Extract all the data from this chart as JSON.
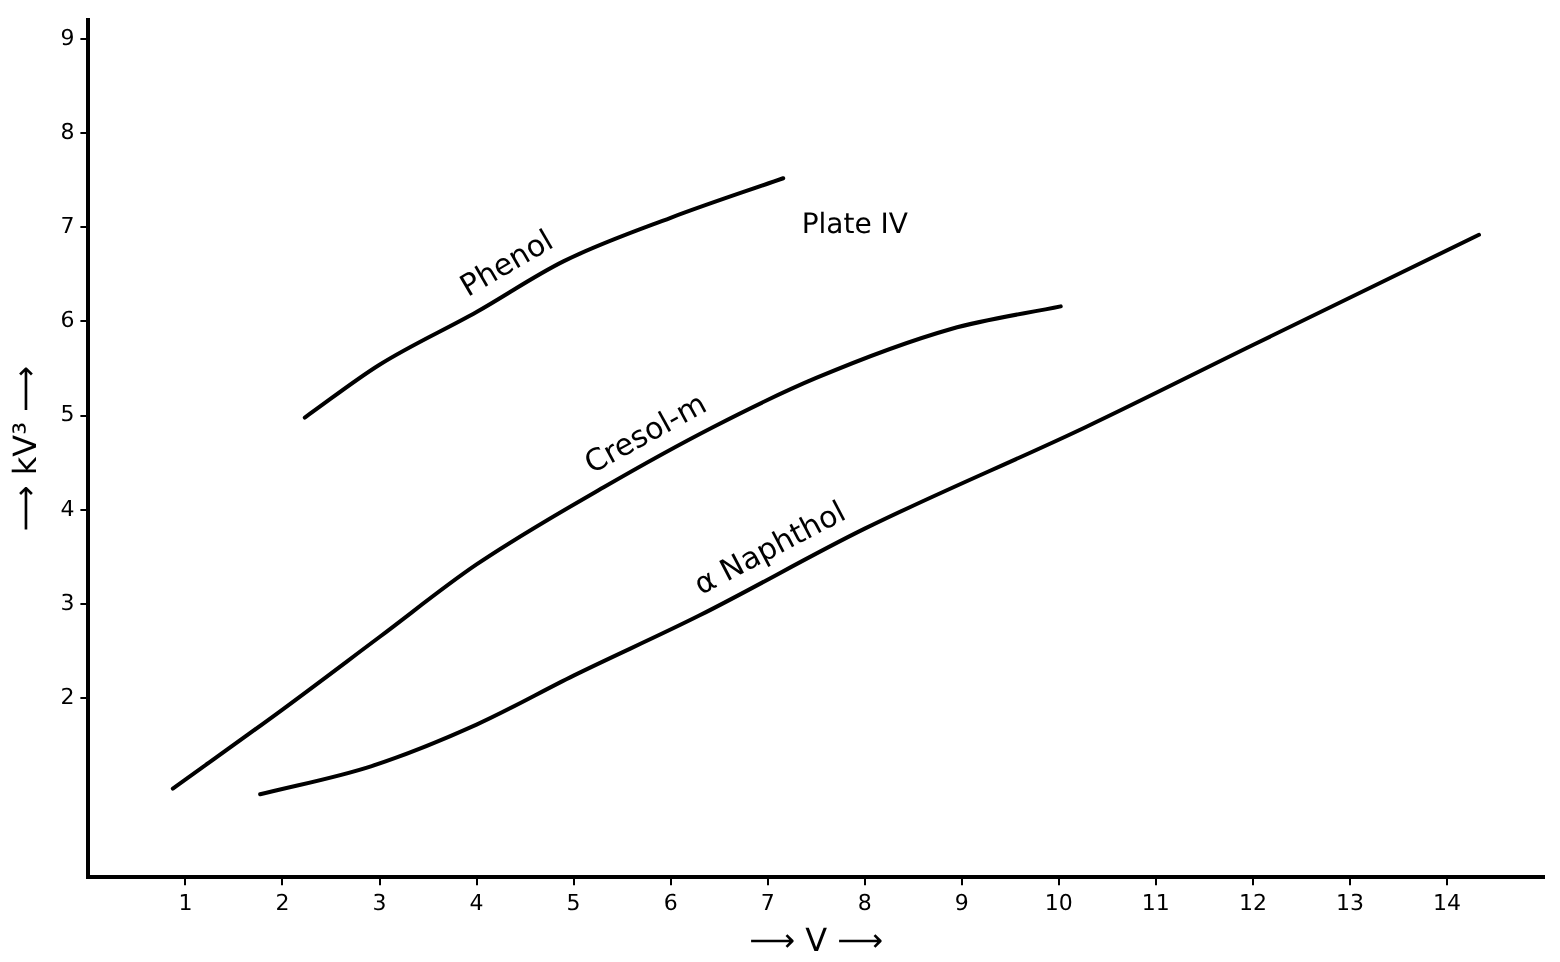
{
  "chart_data": {
    "type": "line",
    "xlabel": "⟶ V ⟶",
    "ylabel": "⟶ kV³ ⟶",
    "annotations": [
      "Plate IV"
    ],
    "xlim": [
      0,
      15
    ],
    "ylim": [
      0.1,
      9.2
    ],
    "xticks": [
      1,
      2,
      3,
      4,
      5,
      6,
      7,
      8,
      9,
      10,
      11,
      12,
      13,
      14
    ],
    "yticks": [
      2,
      3,
      4,
      5,
      6,
      7,
      8,
      9
    ],
    "grid": false,
    "legend": false,
    "marker": "none",
    "line_style": "solid",
    "series": [
      {
        "name": "Phenol",
        "color": "#000000",
        "x": [
          2.23,
          3,
          4,
          4.9,
          6,
          7.16
        ],
        "values": [
          4.98,
          5.54,
          6.1,
          6.64,
          7.1,
          7.52
        ]
      },
      {
        "name": "Cresol-m",
        "color": "#000000",
        "x": [
          0.87,
          2,
          3,
          4,
          5.31,
          6.44,
          7.5,
          8.89,
          10.02
        ],
        "values": [
          1.04,
          1.88,
          2.65,
          3.42,
          4.24,
          4.88,
          5.4,
          5.92,
          6.16
        ]
      },
      {
        "name": "α Naphthol",
        "color": "#000000",
        "x": [
          1.77,
          2.92,
          4,
          5,
          6.3,
          8,
          10.28,
          12,
          14.33
        ],
        "values": [
          0.98,
          1.28,
          1.72,
          2.24,
          2.88,
          3.8,
          4.88,
          5.75,
          6.92
        ]
      }
    ]
  }
}
